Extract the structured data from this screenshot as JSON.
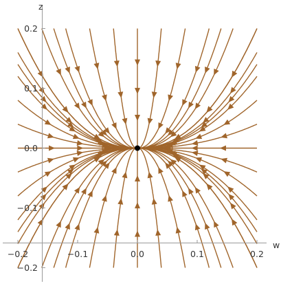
{
  "chart_data": {
    "type": "stream",
    "description_of_field": "flow converging to the origin",
    "xlabel": "w",
    "ylabel": "z",
    "xlim": [
      -0.22,
      0.22
    ],
    "ylim": [
      -0.22,
      0.22
    ],
    "x_ticks": [
      -0.2,
      -0.1,
      0.0,
      0.1,
      0.2
    ],
    "x_tick_labels": [
      "−0.2",
      "−0.1",
      "0.0",
      "0.1",
      "0.2"
    ],
    "y_ticks": [
      -0.2,
      -0.1,
      0.0,
      0.1,
      0.2
    ],
    "y_tick_labels": [
      "−0.2",
      "−0.1",
      "0.0",
      "0.1",
      "0.2"
    ],
    "fixed_point": [
      0.0,
      0.0
    ],
    "grid": false,
    "colors": {
      "stream": "#a0652b",
      "point": "#000000",
      "axis": "#999999"
    }
  }
}
